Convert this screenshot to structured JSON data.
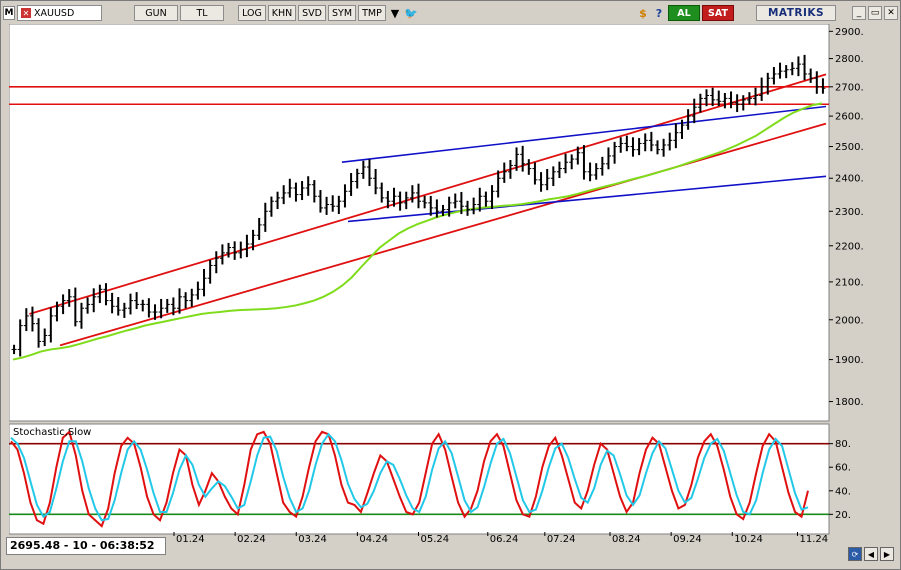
{
  "toolbar": {
    "menu_glyph": "M",
    "symbol": "XAUUSD",
    "period": "GUN",
    "currency": "TL",
    "log": "LOG",
    "khn": "KHN",
    "svd": "SVD",
    "sym": "SYM",
    "tmp": "TMP",
    "buy": "AL",
    "sell": "SAT",
    "brand": "MATRIKS",
    "icons": [
      "dropdown-icon",
      "twitter-icon",
      "dollar-icon",
      "help-icon",
      "minimize-icon",
      "restore-icon",
      "close-icon"
    ]
  },
  "status": {
    "readout": "2695.48 - 10 - 06:38:52"
  },
  "colors": {
    "price_bars": "#000000",
    "moving_average": "#7fdc1a",
    "channel_lines": "#e01010",
    "support_lines": "#1010c8",
    "horizontal_levels": "#e01010",
    "stoch_k": "#e01010",
    "stoch_d": "#22c8e8",
    "stoch_upper": "#8b0000",
    "stoch_lower": "#1a8a1a"
  },
  "chart_data": [
    {
      "type": "line",
      "subtype": "ohlc-bars",
      "title": "",
      "xlabel": "",
      "ylabel": "",
      "ylim": [
        1760,
        2920
      ],
      "y_ticks": [
        1800,
        1900,
        2000,
        2100,
        2200,
        2300,
        2400,
        2500,
        2600,
        2700,
        2800,
        2900
      ],
      "x_ticks": [
        "01.24",
        "02.24",
        "03.24",
        "04.24",
        "05.24",
        "06.24",
        "07.24",
        "08.24",
        "09.24",
        "10.24",
        "11.24"
      ],
      "log_scale": true,
      "horizontal_levels": [
        2700,
        2640
      ],
      "series": [
        {
          "values": [
            1925,
            1985,
            2010,
            1990,
            1945,
            1960,
            2010,
            2035,
            2050,
            2060,
            1995,
            2030,
            2040,
            2060,
            2080,
            2050,
            2035,
            2025,
            2030,
            2050,
            2040,
            2040,
            2020,
            2020,
            2030,
            2040,
            2030,
            2060,
            2050,
            2065,
            2080,
            2110,
            2145,
            2165,
            2180,
            2195,
            2180,
            2190,
            2205,
            2230,
            2260,
            2300,
            2330,
            2340,
            2355,
            2370,
            2350,
            2370,
            2380,
            2345,
            2310,
            2320,
            2315,
            2330,
            2360,
            2390,
            2415,
            2435,
            2400,
            2370,
            2340,
            2330,
            2345,
            2325,
            2340,
            2355,
            2330,
            2325,
            2310,
            2300,
            2305,
            2325,
            2330,
            2315,
            2305,
            2320,
            2345,
            2330,
            2360,
            2400,
            2420,
            2440,
            2475,
            2445,
            2430,
            2395,
            2380,
            2400,
            2420,
            2430,
            2450,
            2460,
            2480,
            2420,
            2410,
            2430,
            2445,
            2470,
            2500,
            2510,
            2500,
            2490,
            2510,
            2520,
            2505,
            2490,
            2505,
            2520,
            2545,
            2570,
            2600,
            2630,
            2660,
            2670,
            2655,
            2650,
            2660,
            2645,
            2640,
            2655,
            2660,
            2670,
            2700,
            2730,
            2745,
            2755,
            2760,
            2765,
            2780,
            2745,
            2730,
            2700,
            2695
          ]
        },
        {
          "name": "MA",
          "values": [
            1900,
            1905,
            1912,
            1920,
            1925,
            1928,
            1932,
            1938,
            1945,
            1952,
            1958,
            1965,
            1972,
            1978,
            1985,
            1990,
            1995,
            2000,
            2005,
            2010,
            2015,
            2018,
            2020,
            2023,
            2025,
            2026,
            2027,
            2028,
            2030,
            2033,
            2037,
            2043,
            2050,
            2060,
            2073,
            2090,
            2112,
            2140,
            2168,
            2195,
            2215,
            2235,
            2250,
            2262,
            2272,
            2282,
            2290,
            2297,
            2303,
            2307,
            2311,
            2313,
            2316,
            2318,
            2321,
            2325,
            2330,
            2336,
            2340,
            2345,
            2352,
            2360,
            2368,
            2375,
            2382,
            2390,
            2398,
            2405,
            2413,
            2422,
            2430,
            2440,
            2450,
            2460,
            2470,
            2480,
            2492,
            2505,
            2520,
            2535,
            2555,
            2575,
            2595,
            2612,
            2625,
            2637,
            2643
          ]
        }
      ]
    },
    {
      "type": "line",
      "title": "Stochastic,Slow",
      "ylim": [
        5,
        95
      ],
      "y_ticks": [
        20,
        40,
        60,
        80
      ],
      "reference_levels": [
        80,
        20
      ],
      "series": [
        {
          "name": "%K",
          "values": [
            82,
            75,
            55,
            30,
            15,
            12,
            30,
            60,
            85,
            90,
            70,
            40,
            20,
            15,
            10,
            25,
            55,
            78,
            85,
            80,
            60,
            35,
            20,
            15,
            30,
            55,
            75,
            70,
            45,
            28,
            40,
            55,
            48,
            35,
            25,
            20,
            45,
            75,
            88,
            90,
            80,
            55,
            30,
            22,
            18,
            35,
            60,
            82,
            90,
            88,
            70,
            45,
            30,
            28,
            22,
            38,
            55,
            70,
            65,
            50,
            35,
            22,
            20,
            30,
            55,
            80,
            88,
            75,
            52,
            30,
            18,
            25,
            40,
            65,
            82,
            88,
            78,
            55,
            32,
            20,
            18,
            35,
            60,
            78,
            85,
            70,
            50,
            30,
            25,
            40,
            62,
            80,
            75,
            55,
            35,
            22,
            30,
            55,
            75,
            85,
            80,
            60,
            40,
            25,
            28,
            45,
            68,
            82,
            88,
            78,
            58,
            35,
            20,
            16,
            30,
            55,
            78,
            88,
            82,
            60,
            38,
            22,
            18,
            40
          ]
        },
        {
          "name": "%D",
          "values": [
            85,
            80,
            68,
            48,
            28,
            18,
            22,
            42,
            65,
            82,
            82,
            65,
            42,
            25,
            15,
            16,
            32,
            55,
            75,
            82,
            75,
            58,
            38,
            22,
            22,
            38,
            58,
            70,
            62,
            45,
            35,
            42,
            48,
            44,
            35,
            25,
            28,
            48,
            70,
            85,
            86,
            74,
            52,
            34,
            22,
            25,
            40,
            62,
            80,
            88,
            82,
            66,
            46,
            33,
            26,
            29,
            40,
            55,
            65,
            62,
            50,
            36,
            25,
            22,
            35,
            58,
            76,
            82,
            72,
            52,
            32,
            22,
            26,
            43,
            63,
            80,
            84,
            72,
            52,
            32,
            22,
            24,
            40,
            60,
            76,
            80,
            68,
            50,
            34,
            30,
            42,
            62,
            74,
            70,
            54,
            36,
            28,
            36,
            55,
            72,
            82,
            76,
            58,
            40,
            30,
            34,
            50,
            68,
            80,
            84,
            74,
            55,
            36,
            22,
            20,
            32,
            55,
            75,
            84,
            78,
            58,
            38,
            24,
            26
          ]
        }
      ]
    }
  ]
}
